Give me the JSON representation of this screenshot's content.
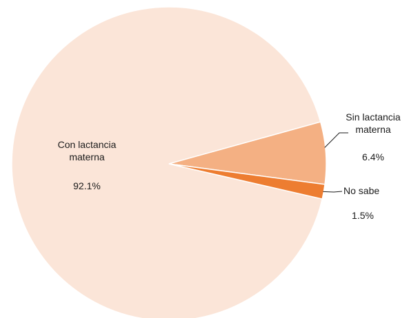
{
  "chart_data": {
    "type": "pie",
    "slices": [
      {
        "label_lines": [
          "Con lactancia",
          "materna"
        ],
        "percent_label": "92.1%",
        "value": 92.1,
        "color": "#fbe5d8"
      },
      {
        "label_lines": [
          "Sin lactancia",
          "materna"
        ],
        "percent_label": "6.4%",
        "value": 6.4,
        "color": "#f4b083"
      },
      {
        "label_lines": [
          "No sabe"
        ],
        "percent_label": "1.5%",
        "value": 1.5,
        "color": "#ed7d31"
      }
    ],
    "legend": "none",
    "title": ""
  }
}
